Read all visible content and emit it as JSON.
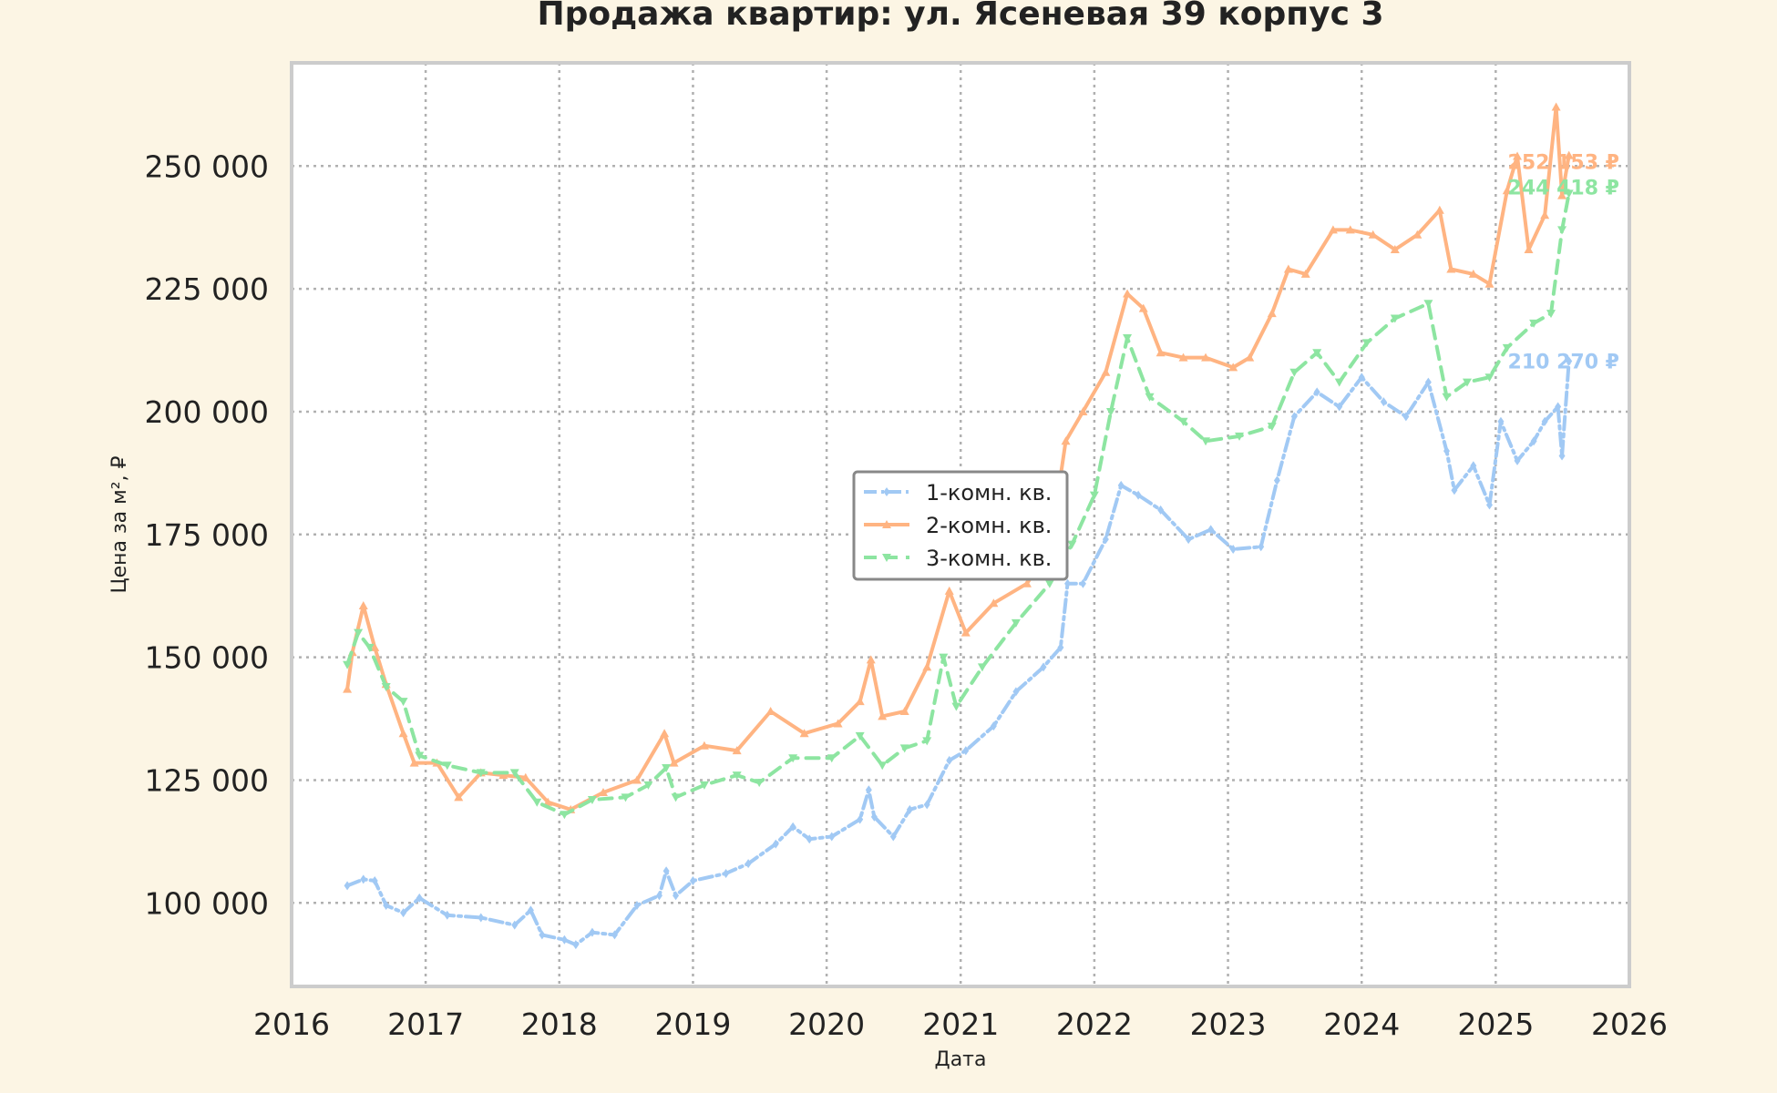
{
  "chart_data": {
    "type": "line",
    "title": "Продажа квартир: ул. Ясеневая 39 корпус 3",
    "xlabel": "Дата",
    "ylabel": "Цена за м², ₽",
    "xlim": [
      "2016-01-01",
      "2026-01-01"
    ],
    "ylim": [
      83000,
      271000
    ],
    "x_ticks": [
      "2016",
      "2017",
      "2018",
      "2019",
      "2020",
      "2021",
      "2022",
      "2023",
      "2024",
      "2025",
      "2026"
    ],
    "y_ticks": [
      100000,
      125000,
      150000,
      175000,
      200000,
      225000,
      250000
    ],
    "y_tick_labels": [
      "100 000",
      "125 000",
      "150 000",
      "175 000",
      "200 000",
      "225 000",
      "250 000"
    ],
    "grid": true,
    "legend_position": "center",
    "colors": {
      "background": "#fcf5e4",
      "plot_bg": "#ffffff",
      "grid": "#b0b0b0",
      "frame": "#cccccc"
    },
    "series": [
      {
        "name": "1-комн. кв.",
        "color": "#a1c9f4",
        "dash": "14,5,3,5",
        "marker": "diamond",
        "end_label": "210 270 ₽",
        "points": [
          [
            "2016-06-01",
            103500
          ],
          [
            "2016-07-15",
            104800
          ],
          [
            "2016-08-15",
            104500
          ],
          [
            "2016-09-15",
            99500
          ],
          [
            "2016-11-01",
            98000
          ],
          [
            "2016-12-15",
            101000
          ],
          [
            "2017-03-01",
            97500
          ],
          [
            "2017-06-01",
            97000
          ],
          [
            "2017-09-01",
            95500
          ],
          [
            "2017-10-15",
            98500
          ],
          [
            "2017-11-15",
            93500
          ],
          [
            "2018-01-15",
            92500
          ],
          [
            "2018-02-15",
            91500
          ],
          [
            "2018-04-01",
            94000
          ],
          [
            "2018-06-01",
            93500
          ],
          [
            "2018-08-01",
            99500
          ],
          [
            "2018-10-01",
            101500
          ],
          [
            "2018-10-20",
            106500
          ],
          [
            "2018-11-15",
            101500
          ],
          [
            "2019-01-01",
            104500
          ],
          [
            "2019-04-01",
            106000
          ],
          [
            "2019-06-01",
            108000
          ],
          [
            "2019-08-15",
            112000
          ],
          [
            "2019-10-01",
            115500
          ],
          [
            "2019-11-15",
            113000
          ],
          [
            "2020-01-15",
            113500
          ],
          [
            "2020-04-01",
            117000
          ],
          [
            "2020-04-25",
            123000
          ],
          [
            "2020-05-10",
            117500
          ],
          [
            "2020-07-01",
            113500
          ],
          [
            "2020-08-15",
            119000
          ],
          [
            "2020-10-01",
            120000
          ],
          [
            "2020-12-01",
            129000
          ],
          [
            "2021-01-15",
            131000
          ],
          [
            "2021-04-01",
            136000
          ],
          [
            "2021-06-01",
            143000
          ],
          [
            "2021-08-15",
            148000
          ],
          [
            "2021-10-01",
            152000
          ],
          [
            "2021-10-20",
            165000
          ],
          [
            "2021-12-01",
            165000
          ],
          [
            "2022-02-01",
            174000
          ],
          [
            "2022-03-15",
            185000
          ],
          [
            "2022-05-01",
            183000
          ],
          [
            "2022-07-01",
            180000
          ],
          [
            "2022-09-15",
            174000
          ],
          [
            "2022-11-15",
            176000
          ],
          [
            "2023-01-15",
            172000
          ],
          [
            "2023-04-01",
            172500
          ],
          [
            "2023-05-15",
            186000
          ],
          [
            "2023-07-01",
            199000
          ],
          [
            "2023-09-01",
            204000
          ],
          [
            "2023-11-01",
            201000
          ],
          [
            "2024-01-01",
            207000
          ],
          [
            "2024-03-01",
            202000
          ],
          [
            "2024-05-01",
            199000
          ],
          [
            "2024-07-01",
            206000
          ],
          [
            "2024-08-20",
            192000
          ],
          [
            "2024-09-10",
            184000
          ],
          [
            "2024-11-01",
            189000
          ],
          [
            "2024-12-15",
            181000
          ],
          [
            "2025-01-15",
            198000
          ],
          [
            "2025-03-01",
            190000
          ],
          [
            "2025-04-15",
            194000
          ],
          [
            "2025-05-15",
            198000
          ],
          [
            "2025-06-20",
            201000
          ],
          [
            "2025-07-01",
            191000
          ],
          [
            "2025-07-20",
            210270
          ]
        ]
      },
      {
        "name": "2-комн. кв.",
        "color": "#ffb482",
        "dash": "",
        "marker": "triangle-up",
        "end_label": "252 153 ₽",
        "points": [
          [
            "2016-06-01",
            143500
          ],
          [
            "2016-06-15",
            151000
          ],
          [
            "2016-07-15",
            160500
          ],
          [
            "2016-08-15",
            152000
          ],
          [
            "2016-09-15",
            144500
          ],
          [
            "2016-11-01",
            134500
          ],
          [
            "2016-12-01",
            128500
          ],
          [
            "2017-02-01",
            128500
          ],
          [
            "2017-04-01",
            121500
          ],
          [
            "2017-06-01",
            126500
          ],
          [
            "2017-08-01",
            126000
          ],
          [
            "2017-10-01",
            125500
          ],
          [
            "2017-12-01",
            120500
          ],
          [
            "2018-02-01",
            119000
          ],
          [
            "2018-05-01",
            122500
          ],
          [
            "2018-08-01",
            125000
          ],
          [
            "2018-10-15",
            134500
          ],
          [
            "2018-11-10",
            128500
          ],
          [
            "2019-02-01",
            132000
          ],
          [
            "2019-05-01",
            131000
          ],
          [
            "2019-08-01",
            139000
          ],
          [
            "2019-11-01",
            134500
          ],
          [
            "2020-02-01",
            136500
          ],
          [
            "2020-04-01",
            141000
          ],
          [
            "2020-05-01",
            149500
          ],
          [
            "2020-06-01",
            138000
          ],
          [
            "2020-08-01",
            139000
          ],
          [
            "2020-10-01",
            148000
          ],
          [
            "2020-12-01",
            163500
          ],
          [
            "2021-01-15",
            155000
          ],
          [
            "2021-04-01",
            161000
          ],
          [
            "2021-07-01",
            165000
          ],
          [
            "2021-09-01",
            172000
          ],
          [
            "2021-10-15",
            194000
          ],
          [
            "2021-12-01",
            200000
          ],
          [
            "2022-02-01",
            208000
          ],
          [
            "2022-04-01",
            224000
          ],
          [
            "2022-05-15",
            221000
          ],
          [
            "2022-07-01",
            212000
          ],
          [
            "2022-09-01",
            211000
          ],
          [
            "2022-11-01",
            211000
          ],
          [
            "2023-01-15",
            209000
          ],
          [
            "2023-03-01",
            211000
          ],
          [
            "2023-05-01",
            220000
          ],
          [
            "2023-06-15",
            229000
          ],
          [
            "2023-08-01",
            228000
          ],
          [
            "2023-10-15",
            237000
          ],
          [
            "2023-12-01",
            237000
          ],
          [
            "2024-02-01",
            236000
          ],
          [
            "2024-04-01",
            233000
          ],
          [
            "2024-06-01",
            236000
          ],
          [
            "2024-08-01",
            241000
          ],
          [
            "2024-09-01",
            229000
          ],
          [
            "2024-11-01",
            228000
          ],
          [
            "2024-12-15",
            226000
          ],
          [
            "2025-02-01",
            245000
          ],
          [
            "2025-03-01",
            252000
          ],
          [
            "2025-04-01",
            233000
          ],
          [
            "2025-05-15",
            240000
          ],
          [
            "2025-06-15",
            262000
          ],
          [
            "2025-07-01",
            244000
          ],
          [
            "2025-07-20",
            252153
          ]
        ]
      },
      {
        "name": "3-комн. кв.",
        "color": "#8de5a1",
        "dash": "14,9",
        "marker": "triangle-down",
        "end_label": "244 418 ₽",
        "points": [
          [
            "2016-06-01",
            148500
          ],
          [
            "2016-07-01",
            155000
          ],
          [
            "2016-08-01",
            152000
          ],
          [
            "2016-09-15",
            144000
          ],
          [
            "2016-11-01",
            141000
          ],
          [
            "2016-12-15",
            130000
          ],
          [
            "2017-03-01",
            128000
          ],
          [
            "2017-06-01",
            126500
          ],
          [
            "2017-09-01",
            126500
          ],
          [
            "2017-11-01",
            120500
          ],
          [
            "2018-01-15",
            118000
          ],
          [
            "2018-04-01",
            121000
          ],
          [
            "2018-07-01",
            121500
          ],
          [
            "2018-09-01",
            124000
          ],
          [
            "2018-10-20",
            127500
          ],
          [
            "2018-11-15",
            121500
          ],
          [
            "2019-02-01",
            124000
          ],
          [
            "2019-05-01",
            126000
          ],
          [
            "2019-07-01",
            124500
          ],
          [
            "2019-10-01",
            129500
          ],
          [
            "2020-01-15",
            129500
          ],
          [
            "2020-04-01",
            134000
          ],
          [
            "2020-06-01",
            128000
          ],
          [
            "2020-08-01",
            131500
          ],
          [
            "2020-10-01",
            133000
          ],
          [
            "2020-11-15",
            150000
          ],
          [
            "2020-12-20",
            140000
          ],
          [
            "2021-03-01",
            148000
          ],
          [
            "2021-06-01",
            157000
          ],
          [
            "2021-09-01",
            165000
          ],
          [
            "2021-11-01",
            173000
          ],
          [
            "2022-01-01",
            183000
          ],
          [
            "2022-02-15",
            200000
          ],
          [
            "2022-04-01",
            215000
          ],
          [
            "2022-06-01",
            203000
          ],
          [
            "2022-09-01",
            198000
          ],
          [
            "2022-11-01",
            194000
          ],
          [
            "2023-02-01",
            195000
          ],
          [
            "2023-05-01",
            197000
          ],
          [
            "2023-07-01",
            208000
          ],
          [
            "2023-09-01",
            212000
          ],
          [
            "2023-11-01",
            206000
          ],
          [
            "2024-01-15",
            214000
          ],
          [
            "2024-04-01",
            219000
          ],
          [
            "2024-07-01",
            222000
          ],
          [
            "2024-08-20",
            203000
          ],
          [
            "2024-10-15",
            206000
          ],
          [
            "2024-12-15",
            207000
          ],
          [
            "2025-02-01",
            213000
          ],
          [
            "2025-04-15",
            218000
          ],
          [
            "2025-06-01",
            220000
          ],
          [
            "2025-07-01",
            237000
          ],
          [
            "2025-07-20",
            244418
          ]
        ]
      }
    ]
  }
}
